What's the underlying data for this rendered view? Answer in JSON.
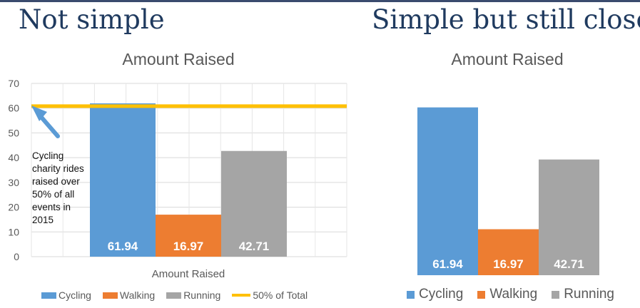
{
  "headings": {
    "left": "Not simple",
    "right": "Simple but still closed"
  },
  "colors": {
    "cycling": "#5b9bd5",
    "walking": "#ed7d31",
    "running": "#a5a5a5",
    "threshold": "#ffc000",
    "arrow": "#5b9bd5"
  },
  "chart_data": [
    {
      "type": "bar",
      "title": "Amount Raised",
      "xlabel": "Amount Raised",
      "ylabel": "",
      "ylim": [
        0,
        70
      ],
      "yticks": [
        0,
        10,
        20,
        30,
        40,
        50,
        60,
        70
      ],
      "grid": true,
      "legend_position": "bottom",
      "series": [
        {
          "name": "Cycling",
          "values": [
            61.94
          ]
        },
        {
          "name": "Walking",
          "values": [
            16.97
          ]
        },
        {
          "name": "Running",
          "values": [
            42.71
          ]
        },
        {
          "name": "50% of Total",
          "type": "line",
          "value": 60.81
        }
      ],
      "data_labels": [
        "61.94",
        "16.97",
        "42.71"
      ],
      "annotation": "Cycling charity rides raised over 50% of all events in 2015"
    },
    {
      "type": "bar",
      "title": "Amount Raised",
      "xlabel": "",
      "ylabel": "",
      "ylim": [
        0,
        70
      ],
      "grid": false,
      "legend_position": "bottom",
      "series": [
        {
          "name": "Cycling",
          "values": [
            61.94
          ]
        },
        {
          "name": "Walking",
          "values": [
            16.97
          ]
        },
        {
          "name": "Running",
          "values": [
            42.71
          ]
        }
      ],
      "data_labels": [
        "61.94",
        "16.97",
        "42.71"
      ]
    }
  ]
}
